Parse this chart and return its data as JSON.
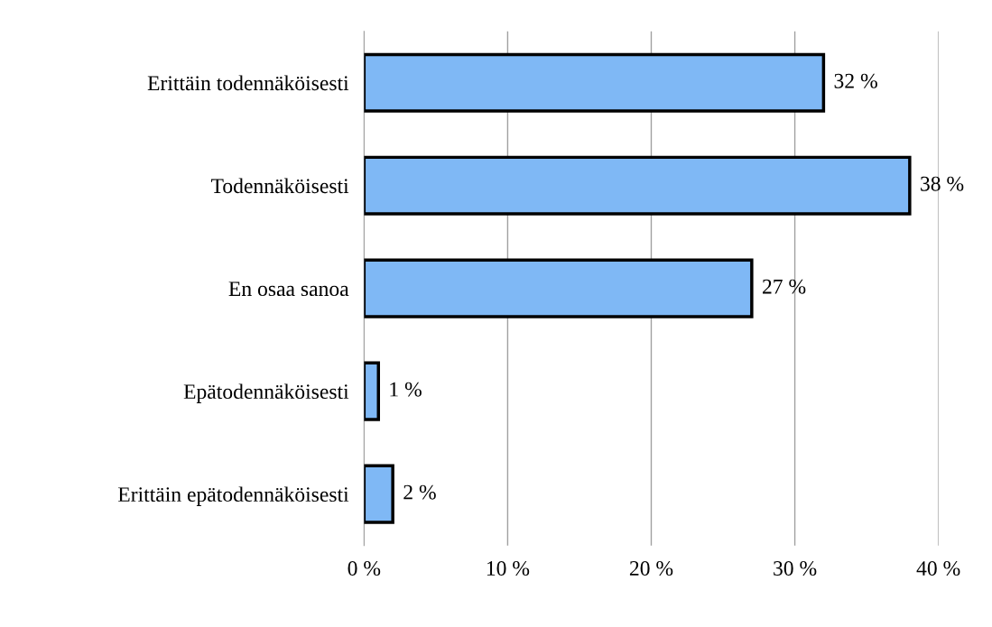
{
  "chart_data": {
    "type": "bar",
    "orientation": "horizontal",
    "categories": [
      "Erittäin todennäköisesti",
      "Todennäköisesti",
      "En osaa sanoa",
      "Epätodennäköisesti",
      "Erittäin epätodennäköisesti"
    ],
    "values": [
      32,
      38,
      27,
      1,
      2
    ],
    "value_labels": [
      "32 %",
      "38 %",
      "27 %",
      "1 %",
      "2 %"
    ],
    "color": "#7fb8f5",
    "xlim": [
      0,
      40
    ],
    "xticks": [
      {
        "value": 0,
        "label": "0 %"
      },
      {
        "value": 10,
        "label": "10 %"
      },
      {
        "value": 20,
        "label": "20 %"
      },
      {
        "value": 30,
        "label": "30 %"
      },
      {
        "value": 40,
        "label": "40 %"
      }
    ],
    "grid": "x"
  }
}
